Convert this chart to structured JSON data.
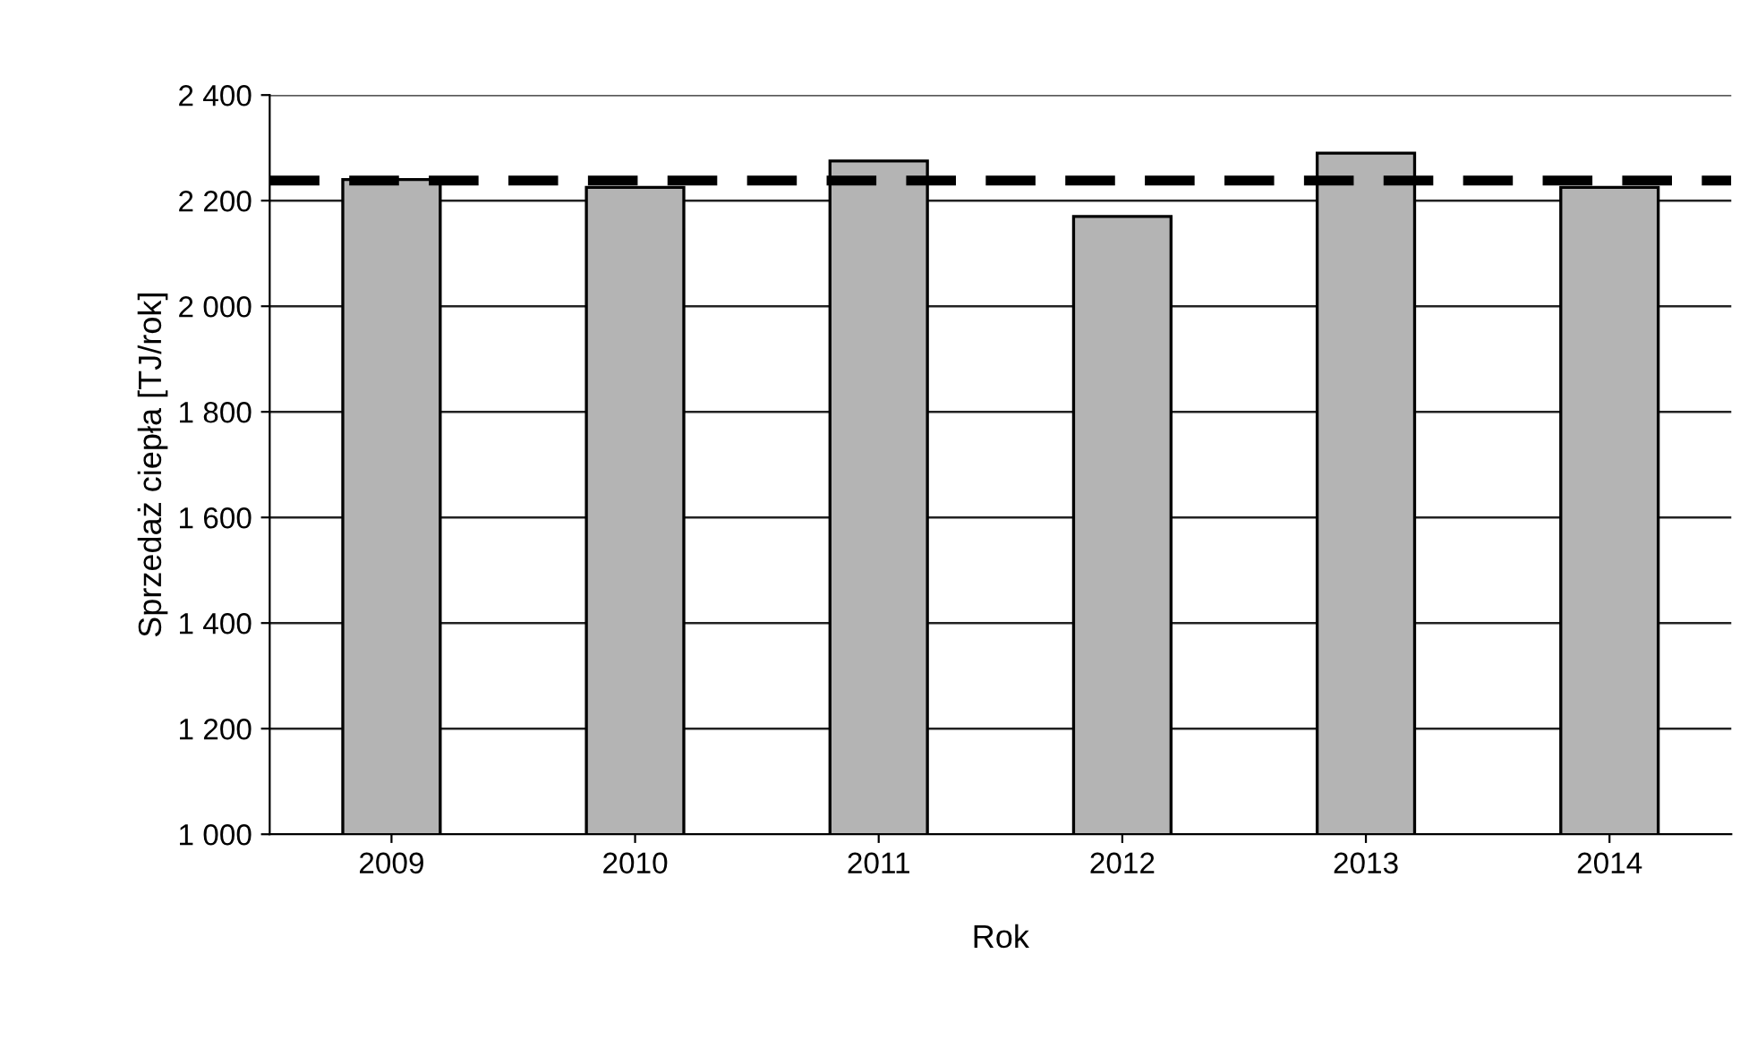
{
  "chart_data": {
    "type": "bar",
    "xlabel": "Rok",
    "ylabel": "Sprzedaż ciepła [TJ/rok]",
    "categories": [
      "2009",
      "2010",
      "2011",
      "2012",
      "2013",
      "2014"
    ],
    "values": [
      2240,
      2225,
      2275,
      2170,
      2290,
      2225
    ],
    "color": "#b4b4b4",
    "ylim": [
      1000,
      2400
    ],
    "yticks": [
      {
        "value": 1000,
        "label": "1 000"
      },
      {
        "value": 1200,
        "label": "1 200"
      },
      {
        "value": 1400,
        "label": "1 400"
      },
      {
        "value": 1600,
        "label": "1 600"
      },
      {
        "value": 1800,
        "label": "1 800"
      },
      {
        "value": 2000,
        "label": "2 000"
      },
      {
        "value": 2200,
        "label": "2 200"
      },
      {
        "value": 2400,
        "label": "2 400"
      }
    ],
    "grid": "y",
    "ref_lines": [
      {
        "axis": "y",
        "value": 2238,
        "color": "#000000",
        "line_style": "dashed"
      }
    ]
  }
}
